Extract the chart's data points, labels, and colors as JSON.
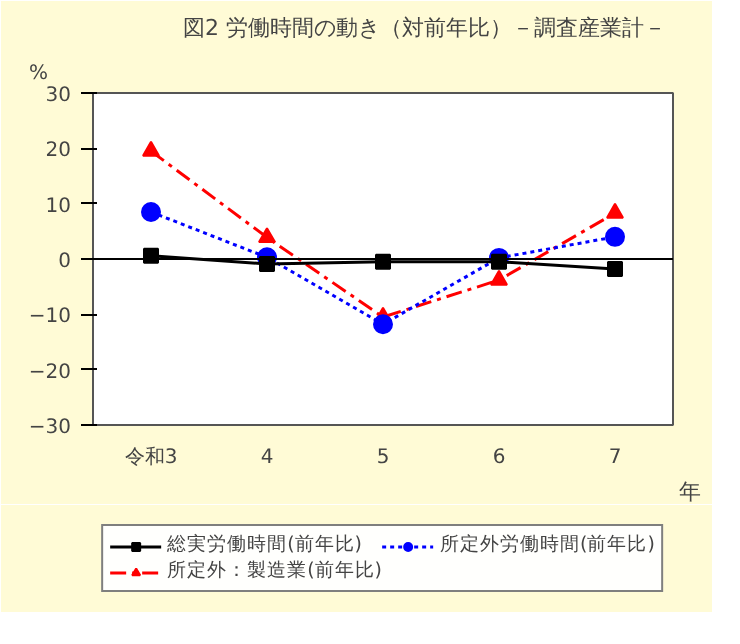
{
  "chart_data": {
    "type": "line",
    "title": "図2  労働時間の動き（対前年比）－調査産業計－",
    "ylabel": "%",
    "xlabel": "年",
    "categories": [
      "令和3",
      "4",
      "5",
      "6",
      "7"
    ],
    "ylim": [
      -30,
      30
    ],
    "yticks": [
      -30,
      -20,
      -10,
      0,
      10,
      20,
      30
    ],
    "grid": false,
    "legend": "bottom",
    "ref_lines": [
      {
        "axis": "y",
        "value": 0,
        "color": "#000000",
        "line_style": "solid"
      }
    ],
    "series": [
      {
        "name": "総実労働時間(前年比)",
        "color": "#000000",
        "marker": "square",
        "line_style": "solid",
        "values": [
          0.6,
          -0.9,
          -0.5,
          -0.5,
          -1.8
        ]
      },
      {
        "name": "所定外労働時間(前年比)",
        "color": "#0000ff",
        "marker": "circle",
        "line_style": "dotted",
        "values": [
          8.5,
          0.3,
          -11.8,
          0.2,
          4.0
        ]
      },
      {
        "name": "所定外：製造業(前年比)",
        "color": "#ff0000",
        "marker": "triangle",
        "line_style": "dashdot",
        "values": [
          19.5,
          3.9,
          -10.5,
          -3.8,
          8.3
        ]
      }
    ]
  }
}
